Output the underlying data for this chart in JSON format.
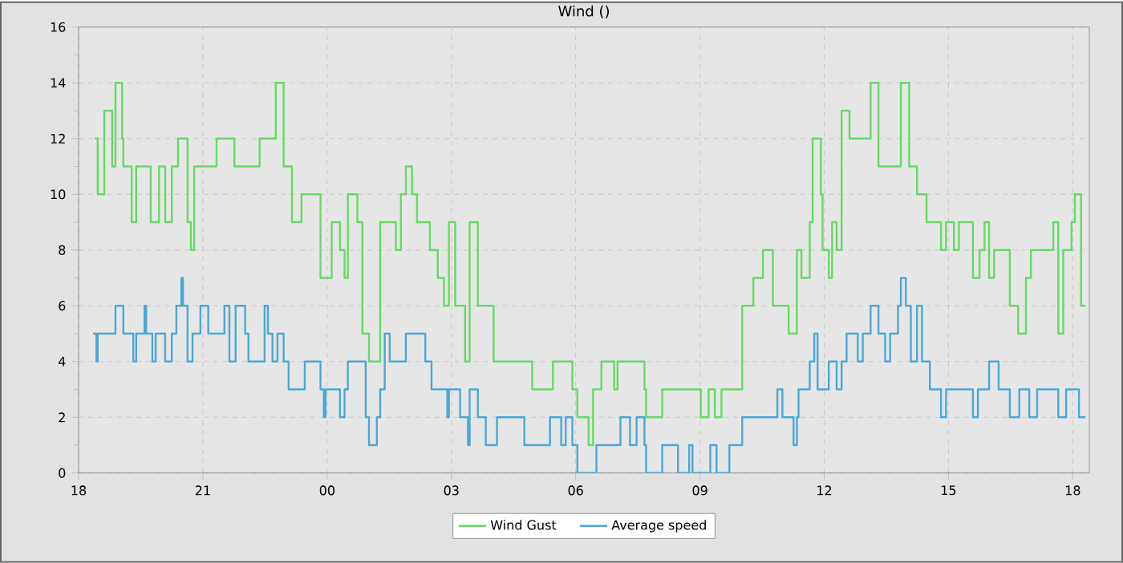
{
  "chart_data": {
    "type": "step",
    "title": "Wind ()",
    "xlim": [
      18,
      42.4
    ],
    "ylim": [
      0,
      16
    ],
    "xticks": [
      {
        "value": 18,
        "label": "18"
      },
      {
        "value": 21,
        "label": "21"
      },
      {
        "value": 24,
        "label": "00"
      },
      {
        "value": 27,
        "label": "03"
      },
      {
        "value": 30,
        "label": "06"
      },
      {
        "value": 33,
        "label": "09"
      },
      {
        "value": 36,
        "label": "12"
      },
      {
        "value": 39,
        "label": "15"
      },
      {
        "value": 42,
        "label": "18"
      }
    ],
    "yticks": [
      0,
      2,
      4,
      6,
      8,
      10,
      12,
      14,
      16
    ],
    "grid": true,
    "legend": "bottom",
    "marker": "none",
    "line_style": "solid",
    "series": [
      {
        "name": "Wind Gust",
        "color": "#66d966",
        "x": [
          18.39,
          18.46,
          18.62,
          18.81,
          18.89,
          19.05,
          19.08,
          19.28,
          19.39,
          19.74,
          19.94,
          20.09,
          20.25,
          20.4,
          20.63,
          20.71,
          20.79,
          21.33,
          21.76,
          22.37,
          22.76,
          22.95,
          23.15,
          23.38,
          23.84,
          24.11,
          24.31,
          24.42,
          24.5,
          24.73,
          24.85,
          25.01,
          25.28,
          25.66,
          25.78,
          25.9,
          26.05,
          26.17,
          26.48,
          26.67,
          26.82,
          26.94,
          27.09,
          27.33,
          27.44,
          27.64,
          28.02,
          28.95,
          29.45,
          29.92,
          30.04,
          30.31,
          30.42,
          30.62,
          30.93,
          31.01,
          31.66,
          31.7,
          32.09,
          33.02,
          33.21,
          33.36,
          33.52,
          34.02,
          34.29,
          34.52,
          34.76,
          35.14,
          35.34,
          35.45,
          35.65,
          35.72,
          35.92,
          35.96,
          36.11,
          36.19,
          36.3,
          36.42,
          36.61,
          37.12,
          37.31,
          37.85,
          38.05,
          38.24,
          38.47,
          38.82,
          38.94,
          39.13,
          39.25,
          39.59,
          39.75,
          39.87,
          39.98,
          40.1,
          40.48,
          40.68,
          40.87,
          40.99,
          41.53,
          41.65,
          41.77,
          41.97,
          42.05,
          42.2,
          42.31
        ],
        "values": [
          12,
          10,
          13,
          11,
          14,
          12,
          11,
          9,
          11,
          9,
          11,
          9,
          11,
          12,
          9,
          8,
          11,
          12,
          11,
          12,
          14,
          11,
          9,
          10,
          7,
          9,
          8,
          7,
          10,
          9,
          5,
          4,
          9,
          8,
          10,
          11,
          10,
          9,
          8,
          7,
          6,
          9,
          6,
          4,
          9,
          6,
          4,
          3,
          4,
          3,
          2,
          1,
          3,
          4,
          3,
          4,
          3,
          2,
          3,
          2,
          3,
          2,
          3,
          6,
          7,
          8,
          6,
          5,
          8,
          7,
          9,
          12,
          10,
          8,
          7,
          9,
          8,
          13,
          12,
          14,
          11,
          14,
          11,
          10,
          9,
          8,
          9,
          8,
          9,
          7,
          8,
          9,
          7,
          8,
          6,
          5,
          7,
          8,
          9,
          5,
          8,
          9,
          10,
          6,
          6
        ]
      },
      {
        "name": "Average speed",
        "color": "#4aa8d8",
        "x": [
          18.35,
          18.43,
          18.46,
          18.89,
          19.08,
          19.32,
          19.39,
          19.59,
          19.63,
          19.78,
          19.86,
          20.09,
          20.25,
          20.36,
          20.48,
          20.52,
          20.63,
          20.75,
          20.94,
          21.13,
          21.52,
          21.64,
          21.79,
          22.02,
          22.1,
          22.49,
          22.57,
          22.68,
          22.8,
          22.95,
          23.07,
          23.46,
          23.84,
          23.92,
          23.96,
          24.31,
          24.42,
          24.5,
          24.93,
          25.01,
          25.2,
          25.28,
          25.39,
          25.51,
          25.9,
          26.37,
          26.52,
          26.9,
          26.94,
          27.21,
          27.4,
          27.44,
          27.64,
          27.83,
          28.1,
          28.76,
          29.38,
          29.65,
          29.76,
          29.92,
          30.04,
          30.5,
          31.08,
          31.31,
          31.47,
          31.66,
          31.7,
          32.09,
          32.47,
          32.74,
          32.82,
          33.25,
          33.4,
          33.71,
          34.02,
          34.87,
          34.99,
          35.26,
          35.34,
          35.38,
          35.65,
          35.76,
          35.84,
          36.11,
          36.3,
          36.42,
          36.54,
          36.81,
          36.93,
          37.12,
          37.31,
          37.47,
          37.59,
          37.78,
          37.85,
          37.97,
          38.09,
          38.24,
          38.36,
          38.55,
          38.82,
          38.94,
          39.59,
          39.71,
          39.98,
          40.21,
          40.48,
          40.71,
          40.95,
          41.14,
          41.65,
          41.84,
          42.15,
          42.31
        ],
        "values": [
          5,
          4,
          5,
          6,
          5,
          4,
          5,
          6,
          5,
          4,
          5,
          4,
          5,
          6,
          7,
          6,
          4,
          5,
          6,
          5,
          6,
          4,
          6,
          5,
          4,
          6,
          5,
          4,
          5,
          4,
          3,
          4,
          3,
          2,
          3,
          2,
          3,
          4,
          2,
          1,
          2,
          3,
          5,
          4,
          5,
          4,
          3,
          2,
          3,
          2,
          1,
          3,
          2,
          1,
          2,
          1,
          2,
          1,
          2,
          1,
          0,
          1,
          2,
          1,
          2,
          1,
          0,
          1,
          0,
          1,
          0,
          1,
          0,
          1,
          2,
          3,
          2,
          1,
          2,
          3,
          4,
          5,
          3,
          4,
          3,
          4,
          5,
          4,
          5,
          6,
          5,
          4,
          5,
          6,
          7,
          6,
          4,
          6,
          4,
          3,
          2,
          3,
          2,
          3,
          4,
          3,
          2,
          3,
          2,
          3,
          2,
          3,
          2,
          2
        ]
      }
    ]
  }
}
